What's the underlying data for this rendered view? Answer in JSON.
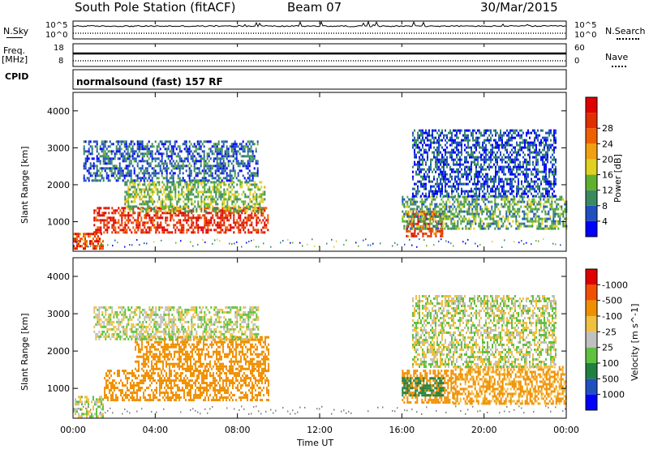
{
  "header": {
    "station": "South Pole Station (fitACF)",
    "beam": "Beam 07",
    "date": "30/Mar/2015"
  },
  "side_labels": {
    "nsky": "N.Sky",
    "nsearch": "N.Search",
    "freq": "Freq.",
    "mhz": "[MHz]",
    "nave": "Nave",
    "cpid": "CPID"
  },
  "strip_ticks": {
    "noise_left_top": "10^5",
    "noise_left_bot": "10^0",
    "noise_right_top": "10^5",
    "noise_right_bot": "10^0",
    "freq_left_top": "18",
    "freq_left_bot": "8",
    "nave_right_top": "60",
    "nave_right_bot": "0"
  },
  "cpid_text": "normalsound (fast) 157 RF",
  "colors": {
    "power": [
      "#0000ff",
      "#2050c0",
      "#3a8a60",
      "#60b030",
      "#e0d020",
      "#f0a010",
      "#f06000",
      "#e03000",
      "#e00000"
    ],
    "velocity": [
      "#e00000",
      "#f05000",
      "#f09000",
      "#f0c040",
      "#c0c0c0",
      "#60c040",
      "#208040",
      "#2050c0",
      "#0000ff"
    ],
    "ground": "#808080"
  },
  "chart_data": [
    {
      "type": "heatmap",
      "name": "Power",
      "ylabel": "Slant Range [km]",
      "xlabel": "Time UT",
      "xticks": [
        "00:00",
        "04:00",
        "08:00",
        "12:00",
        "16:00",
        "20:00",
        "00:00"
      ],
      "yticks": [
        "1000",
        "2000",
        "3000",
        "4000"
      ],
      "ylim": [
        200,
        4500
      ],
      "xlim": [
        0,
        24
      ],
      "colorbar_label": "Power [dB]",
      "colorbar_ticks": [
        "4",
        "8",
        "12",
        "16",
        "20",
        "24",
        "28"
      ],
      "colorbar_range": [
        0,
        30
      ],
      "regions": [
        {
          "t0": 1.0,
          "t1": 9.5,
          "r0": 700,
          "r1": 1400,
          "value": 26
        },
        {
          "t0": 2.5,
          "t1": 9.3,
          "r0": 1300,
          "r1": 2100,
          "value": 12
        },
        {
          "t0": 0.5,
          "t1": 9.0,
          "r0": 2100,
          "r1": 3200,
          "value": 6
        },
        {
          "t0": 0.0,
          "t1": 1.5,
          "r0": 250,
          "r1": 700,
          "value": 24
        },
        {
          "t0": 16.2,
          "t1": 18.0,
          "r0": 600,
          "r1": 1300,
          "value": 24
        },
        {
          "t0": 16.0,
          "t1": 24.0,
          "r0": 800,
          "r1": 1700,
          "value": 10
        },
        {
          "t0": 16.5,
          "t1": 23.5,
          "r0": 1700,
          "r1": 3500,
          "value": 5
        }
      ]
    },
    {
      "type": "heatmap",
      "name": "Velocity",
      "ylabel": "Slant Range [km]",
      "xlabel": "Time UT",
      "xticks": [
        "00:00",
        "04:00",
        "08:00",
        "12:00",
        "16:00",
        "20:00",
        "00:00"
      ],
      "yticks": [
        "1000",
        "2000",
        "3000",
        "4000"
      ],
      "ylim": [
        200,
        4500
      ],
      "xlim": [
        0,
        24
      ],
      "colorbar_label": "Velocity [m s^-1]",
      "colorbar_ticks": [
        "-1000",
        "-500",
        "-100",
        "-25",
        "25",
        "100",
        "500",
        "1000"
      ],
      "regions": [
        {
          "t0": 1.5,
          "t1": 9.5,
          "r0": 700,
          "r1": 1500,
          "value": -300
        },
        {
          "t0": 3.0,
          "t1": 9.5,
          "r0": 1500,
          "r1": 2400,
          "value": -200
        },
        {
          "t0": 1.0,
          "t1": 9.0,
          "r0": 2300,
          "r1": 3200,
          "value": 0
        },
        {
          "t0": 0.0,
          "t1": 1.5,
          "r0": 250,
          "r1": 800,
          "value": 0
        },
        {
          "t0": 16.0,
          "t1": 18.5,
          "r0": 600,
          "r1": 1500,
          "value": -300
        },
        {
          "t0": 16.0,
          "t1": 18.0,
          "r0": 800,
          "r1": 1300,
          "value": 300
        },
        {
          "t0": 18.5,
          "t1": 24.0,
          "r0": 600,
          "r1": 1600,
          "value": -150
        },
        {
          "t0": 16.5,
          "t1": 23.5,
          "r0": 1600,
          "r1": 3500,
          "value": 0
        }
      ]
    }
  ]
}
